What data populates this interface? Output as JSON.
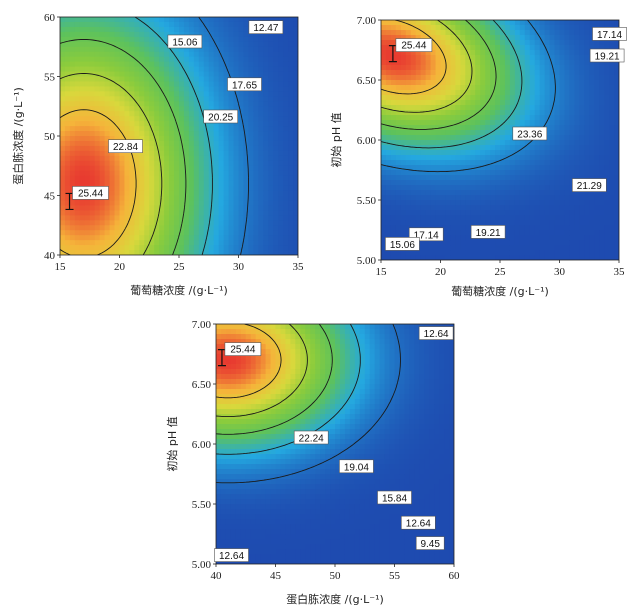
{
  "chart_data": [
    {
      "type": "heatmap",
      "subtype": "contour",
      "xlabel": "葡萄糖浓度 /(g·L⁻¹)",
      "ylabel": "蛋白胨浓度 /(g·L⁻¹)",
      "xlim": [
        15,
        35
      ],
      "ylim": [
        40,
        60
      ],
      "xticks": [
        "15",
        "20",
        "25",
        "30",
        "35"
      ],
      "yticks": [
        "40",
        "45",
        "50",
        "55",
        "60"
      ],
      "optimum": {
        "x": 15.8,
        "y": 44.5,
        "label": "25.44"
      },
      "contours": [
        {
          "value": 12.47,
          "label": "12.47",
          "label_at": [
            32.3,
            59.1
          ]
        },
        {
          "value": 15.06,
          "label": "15.06",
          "label_at": [
            25.5,
            57.9
          ]
        },
        {
          "value": 17.65,
          "label": "17.65",
          "label_at": [
            30.5,
            54.3
          ]
        },
        {
          "value": 20.25,
          "label": "20.25",
          "label_at": [
            28.5,
            51.6
          ]
        },
        {
          "value": 22.84,
          "label": "22.84",
          "label_at": [
            20.5,
            49.1
          ]
        }
      ],
      "colorscale": [
        "#1e4bb0",
        "#24a8e0",
        "#5dc25c",
        "#8ccc3c",
        "#d8d83c",
        "#f5b43a",
        "#e83a30"
      ]
    },
    {
      "type": "heatmap",
      "subtype": "contour",
      "xlabel": "葡萄糖浓度 /(g·L⁻¹)",
      "ylabel": "初始 pH 值",
      "xlim": [
        15,
        35
      ],
      "ylim": [
        5.0,
        7.0
      ],
      "xticks": [
        "15",
        "20",
        "25",
        "30",
        "35"
      ],
      "yticks": [
        "5.00",
        "5.50",
        "6.00",
        "6.50",
        "7.00"
      ],
      "optimum": {
        "x": 16.0,
        "y": 6.72,
        "label": "25.44"
      },
      "contours": [
        {
          "value": 23.36,
          "label": "23.36",
          "label_at": [
            27.5,
            6.05
          ]
        },
        {
          "value": 21.29,
          "label": "21.29",
          "label_at": [
            32.5,
            5.62
          ]
        },
        {
          "value": 19.21,
          "label": "19.21",
          "label_at": [
            34.0,
            6.7
          ]
        },
        {
          "value": 19.21,
          "label": "19.21",
          "label_at": [
            24.0,
            5.23
          ]
        },
        {
          "value": 17.14,
          "label": "17.14",
          "label_at": [
            34.2,
            6.88
          ]
        },
        {
          "value": 17.14,
          "label": "17.14",
          "label_at": [
            18.8,
            5.21
          ]
        },
        {
          "value": 15.06,
          "label": "15.06",
          "label_at": [
            16.8,
            5.13
          ]
        }
      ],
      "colorscale": [
        "#1e4bb0",
        "#24a8e0",
        "#5dc25c",
        "#8ccc3c",
        "#d8d83c",
        "#f5b43a",
        "#e83a30"
      ]
    },
    {
      "type": "heatmap",
      "subtype": "contour",
      "xlabel": "蛋白胨浓度 /(g·L⁻¹)",
      "ylabel": "初始 pH 值",
      "xlim": [
        40,
        60
      ],
      "ylim": [
        5.0,
        7.0
      ],
      "xticks": [
        "40",
        "45",
        "50",
        "55",
        "60"
      ],
      "yticks": [
        "5.00",
        "5.50",
        "6.00",
        "6.50",
        "7.00"
      ],
      "optimum": {
        "x": 40.5,
        "y": 6.72,
        "label": "25.44"
      },
      "contours": [
        {
          "value": 22.24,
          "label": "22.24",
          "label_at": [
            48.0,
            6.05
          ]
        },
        {
          "value": 19.04,
          "label": "19.04",
          "label_at": [
            51.8,
            5.81
          ]
        },
        {
          "value": 15.84,
          "label": "15.84",
          "label_at": [
            55.0,
            5.55
          ]
        },
        {
          "value": 12.64,
          "label": "12.64",
          "label_at": [
            58.5,
            6.92
          ]
        },
        {
          "value": 12.64,
          "label": "12.64",
          "label_at": [
            57.0,
            5.34
          ]
        },
        {
          "value": 12.64,
          "label": "12.64",
          "label_at": [
            41.3,
            5.07
          ]
        },
        {
          "value": 9.45,
          "label": "9.45",
          "label_at": [
            58.0,
            5.17
          ]
        }
      ],
      "colorscale": [
        "#1e4bb0",
        "#24a8e0",
        "#5dc25c",
        "#8ccc3c",
        "#d8d83c",
        "#f5b43a",
        "#e83a30"
      ]
    }
  ]
}
